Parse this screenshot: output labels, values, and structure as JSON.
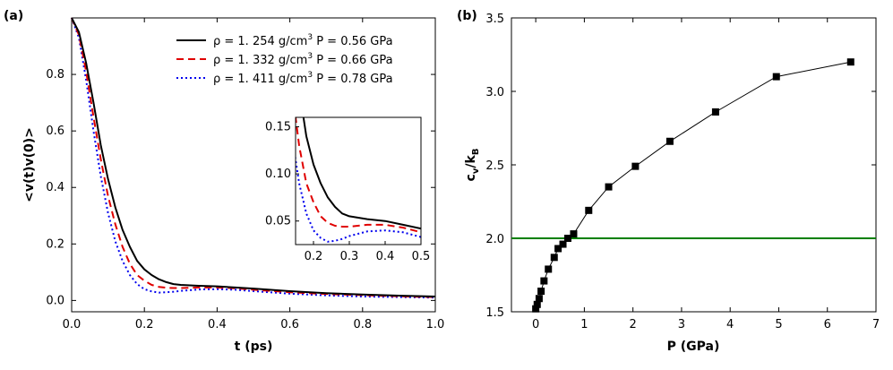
{
  "chart_data": [
    {
      "panel": "(a)",
      "type": "line",
      "xlabel": "t (ps)",
      "ylabel": "<v(t)v(0)>",
      "xlim": [
        0.0,
        1.0
      ],
      "ylim": [
        -0.04,
        1.0
      ],
      "xticks": [
        "0.0",
        "0.2",
        "0.4",
        "0.6",
        "0.8",
        "1.0"
      ],
      "xtick_values": [
        0.0,
        0.2,
        0.4,
        0.6,
        0.8,
        1.0
      ],
      "yticks": [
        "0.0",
        "0.2",
        "0.4",
        "0.6",
        "0.8"
      ],
      "ytick_values": [
        0.0,
        0.2,
        0.4,
        0.6,
        0.8
      ],
      "legend_position": "top-right",
      "series": [
        {
          "name": "ρ = 1. 254 g/cm³ P = 0.56 GPa",
          "legend_main": "ρ = 1. 254 g/cm",
          "legend_sup": "3",
          "legend_tail": " P = 0.56 GPa",
          "color": "#000000",
          "dash": "solid",
          "x": [
            0.0,
            0.02,
            0.04,
            0.06,
            0.08,
            0.1,
            0.12,
            0.14,
            0.16,
            0.18,
            0.2,
            0.22,
            0.24,
            0.26,
            0.28,
            0.3,
            0.35,
            0.4,
            0.45,
            0.5,
            0.6,
            0.7,
            0.8,
            0.9,
            1.0
          ],
          "y": [
            1.0,
            0.95,
            0.84,
            0.7,
            0.55,
            0.43,
            0.33,
            0.25,
            0.19,
            0.14,
            0.11,
            0.09,
            0.075,
            0.065,
            0.058,
            0.055,
            0.052,
            0.05,
            0.046,
            0.042,
            0.033,
            0.026,
            0.021,
            0.017,
            0.014
          ]
        },
        {
          "name": "ρ = 1. 332 g/cm³ P = 0.66 GPa",
          "legend_main": "ρ = 1. 332 g/cm",
          "legend_sup": "3",
          "legend_tail": " P = 0.66 GPa",
          "color": "#e00000",
          "dash": "dashed",
          "x": [
            0.0,
            0.02,
            0.04,
            0.06,
            0.08,
            0.1,
            0.12,
            0.14,
            0.16,
            0.18,
            0.2,
            0.22,
            0.24,
            0.26,
            0.28,
            0.3,
            0.35,
            0.4,
            0.45,
            0.5,
            0.6,
            0.7,
            0.8,
            0.9,
            1.0
          ],
          "y": [
            1.0,
            0.94,
            0.81,
            0.65,
            0.5,
            0.37,
            0.27,
            0.19,
            0.13,
            0.09,
            0.07,
            0.055,
            0.048,
            0.045,
            0.044,
            0.044,
            0.046,
            0.046,
            0.043,
            0.038,
            0.029,
            0.023,
            0.019,
            0.015,
            0.012
          ]
        },
        {
          "name": "ρ = 1. 411 g/cm³ P = 0.78 GPa",
          "legend_main": "ρ = 1. 411 g/cm",
          "legend_sup": "3",
          "legend_tail": " P = 0.78 GPa",
          "color": "#0000ee",
          "dash": "dotted",
          "x": [
            0.0,
            0.02,
            0.04,
            0.06,
            0.08,
            0.1,
            0.12,
            0.14,
            0.16,
            0.18,
            0.2,
            0.22,
            0.24,
            0.26,
            0.28,
            0.3,
            0.35,
            0.4,
            0.45,
            0.5,
            0.6,
            0.7,
            0.8,
            0.9,
            1.0
          ],
          "y": [
            1.0,
            0.93,
            0.78,
            0.6,
            0.44,
            0.31,
            0.21,
            0.14,
            0.09,
            0.058,
            0.04,
            0.032,
            0.028,
            0.029,
            0.031,
            0.034,
            0.039,
            0.04,
            0.038,
            0.033,
            0.024,
            0.018,
            0.014,
            0.012,
            0.01
          ]
        }
      ],
      "inset": {
        "xlim": [
          0.15,
          0.5
        ],
        "ylim": [
          0.025,
          0.16
        ],
        "xticks": [
          "0.2",
          "0.3",
          "0.4",
          "0.5"
        ],
        "xtick_values": [
          0.2,
          0.3,
          0.4,
          0.5
        ],
        "yticks": [
          "0.05",
          "0.10",
          "0.15"
        ],
        "ytick_values": [
          0.05,
          0.1,
          0.15
        ]
      }
    },
    {
      "panel": "(b)",
      "type": "line",
      "xlabel": "P (GPa)",
      "ylabel_main": "c",
      "ylabel_sub": "v",
      "ylabel_slash": "/k",
      "ylabel_sub2": "B",
      "xlim": [
        -0.5,
        7.0
      ],
      "ylim": [
        1.5,
        3.5
      ],
      "xticks": [
        "0",
        "1",
        "2",
        "3",
        "4",
        "5",
        "6",
        "7"
      ],
      "xtick_values": [
        0,
        1,
        2,
        3,
        4,
        5,
        6,
        7
      ],
      "yticks": [
        "1.5",
        "2.0",
        "2.5",
        "3.0",
        "3.5"
      ],
      "ytick_values": [
        1.5,
        2.0,
        2.5,
        3.0,
        3.5
      ],
      "reference_line": {
        "y": 2.0,
        "color": "#008000"
      },
      "series": [
        {
          "name": "c_v/k_B",
          "color": "#000000",
          "marker": "square",
          "x": [
            0.0,
            0.03,
            0.07,
            0.11,
            0.17,
            0.26,
            0.38,
            0.46,
            0.56,
            0.66,
            0.78,
            1.09,
            1.5,
            2.05,
            2.76,
            3.7,
            4.95,
            6.48
          ],
          "y": [
            1.52,
            1.55,
            1.59,
            1.64,
            1.71,
            1.79,
            1.87,
            1.93,
            1.96,
            2.0,
            2.03,
            2.19,
            2.35,
            2.49,
            2.66,
            2.86,
            3.1,
            3.2
          ]
        }
      ]
    }
  ]
}
